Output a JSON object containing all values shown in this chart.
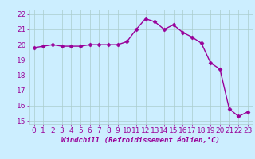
{
  "x": [
    0,
    1,
    2,
    3,
    4,
    5,
    6,
    7,
    8,
    9,
    10,
    11,
    12,
    13,
    14,
    15,
    16,
    17,
    18,
    19,
    20,
    21,
    22,
    23
  ],
  "y": [
    19.8,
    19.9,
    20.0,
    19.9,
    19.9,
    19.9,
    20.0,
    20.0,
    20.0,
    20.0,
    20.2,
    21.0,
    21.7,
    21.5,
    21.0,
    21.3,
    20.8,
    20.5,
    20.1,
    18.8,
    18.4,
    15.8,
    15.3,
    15.6
  ],
  "line_color": "#990099",
  "marker": "D",
  "markersize": 2.5,
  "linewidth": 1.0,
  "bg_color": "#cceeff",
  "grid_color": "#aacccc",
  "xlabel": "Windchill (Refroidissement éolien,°C)",
  "xlabel_fontsize": 6.5,
  "tick_label_color": "#990099",
  "tick_fontsize": 6.5,
  "ylim": [
    14.8,
    22.3
  ],
  "yticks": [
    15,
    16,
    17,
    18,
    19,
    20,
    21,
    22
  ],
  "xlim": [
    -0.5,
    23.5
  ],
  "xticks": [
    0,
    1,
    2,
    3,
    4,
    5,
    6,
    7,
    8,
    9,
    10,
    11,
    12,
    13,
    14,
    15,
    16,
    17,
    18,
    19,
    20,
    21,
    22,
    23
  ]
}
